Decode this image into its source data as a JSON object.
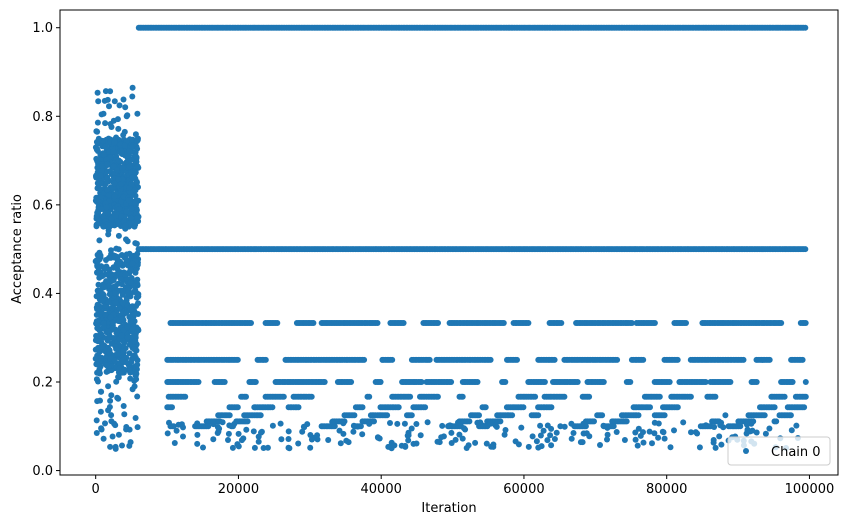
{
  "chart_data": {
    "type": "scatter",
    "title": "",
    "xlabel": "Iteration",
    "ylabel": "Acceptance ratio",
    "xlim": [
      -5000,
      104000
    ],
    "ylim": [
      -0.01,
      1.04
    ],
    "x_ticks": [
      0,
      20000,
      40000,
      60000,
      80000,
      100000
    ],
    "x_tick_labels": [
      "0",
      "20000",
      "40000",
      "60000",
      "80000",
      "100000"
    ],
    "y_ticks": [
      0.0,
      0.2,
      0.4,
      0.6,
      0.8,
      1.0
    ],
    "y_tick_labels": [
      "0.0",
      "0.2",
      "0.4",
      "0.6",
      "0.8",
      "1.0"
    ],
    "grid": false,
    "legend_position": "bottom-right",
    "color": "#1f77b4",
    "series": [
      {
        "name": "Chain 0",
        "burn_in_range": [
          0,
          6000
        ],
        "converged_range": [
          6000,
          99500
        ],
        "burn_in_value_range": [
          0.04,
          0.87
        ],
        "converged_levels": [
          1.0,
          0.5,
          0.3333,
          0.25,
          0.2,
          0.1667,
          0.1429,
          0.125,
          0.1111,
          0.1
        ]
      }
    ]
  }
}
